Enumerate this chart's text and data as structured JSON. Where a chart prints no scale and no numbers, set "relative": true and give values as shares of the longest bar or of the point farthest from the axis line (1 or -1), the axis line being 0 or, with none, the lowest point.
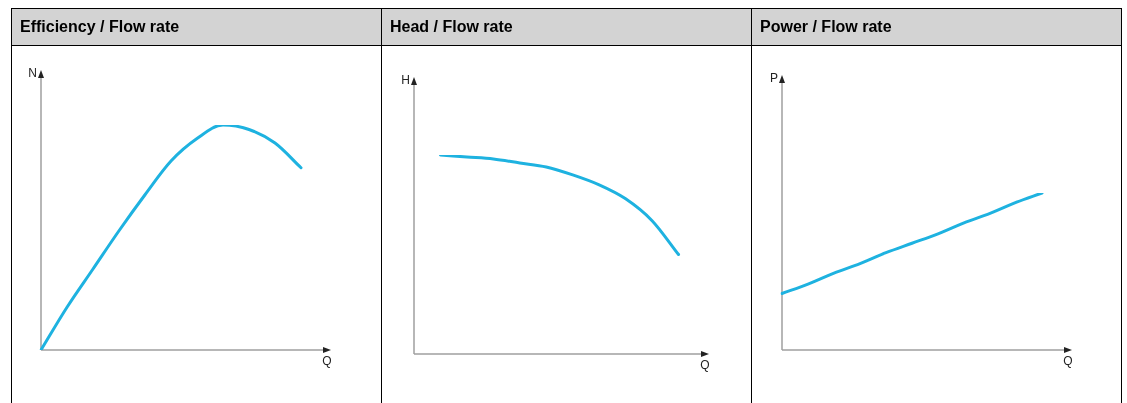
{
  "chart_data": [
    {
      "type": "line",
      "title": "Efficiency / Flow rate",
      "xlabel": "Q",
      "ylabel": "N",
      "relative": true,
      "legend": false,
      "categories": [
        null,
        null,
        null,
        null,
        null,
        null,
        null,
        null,
        null,
        null,
        null,
        null
      ],
      "series": [
        {
          "color": "#1eb2e0",
          "values": [
            0,
            0.19,
            0.36,
            0.53,
            0.69,
            0.84,
            0.94,
            1,
            0.98,
            0.92,
            0.81,
            null
          ]
        }
      ]
    },
    {
      "type": "line",
      "title": "Head / Flow rate",
      "xlabel": "Q",
      "ylabel": "H",
      "relative": true,
      "legend": false,
      "categories": [
        null,
        null,
        null,
        null,
        null,
        null,
        null,
        null,
        null,
        null,
        null,
        null
      ],
      "series": [
        {
          "color": "#1eb2e0",
          "values": [
            null,
            1,
            0.99,
            0.98,
            0.96,
            0.94,
            0.9,
            0.85,
            0.78,
            0.67,
            0.5,
            null
          ]
        }
      ]
    },
    {
      "type": "line",
      "title": "Power / Flow rate",
      "xlabel": "Q",
      "ylabel": "P",
      "relative": true,
      "legend": false,
      "categories": [
        null,
        null,
        null,
        null,
        null,
        null,
        null,
        null,
        null,
        null,
        null,
        null
      ],
      "series": [
        {
          "color": "#1eb2e0",
          "values": [
            0.36,
            0.42,
            0.49,
            0.55,
            0.62,
            0.68,
            0.74,
            0.81,
            0.87,
            0.94,
            1,
            null
          ]
        }
      ]
    }
  ]
}
